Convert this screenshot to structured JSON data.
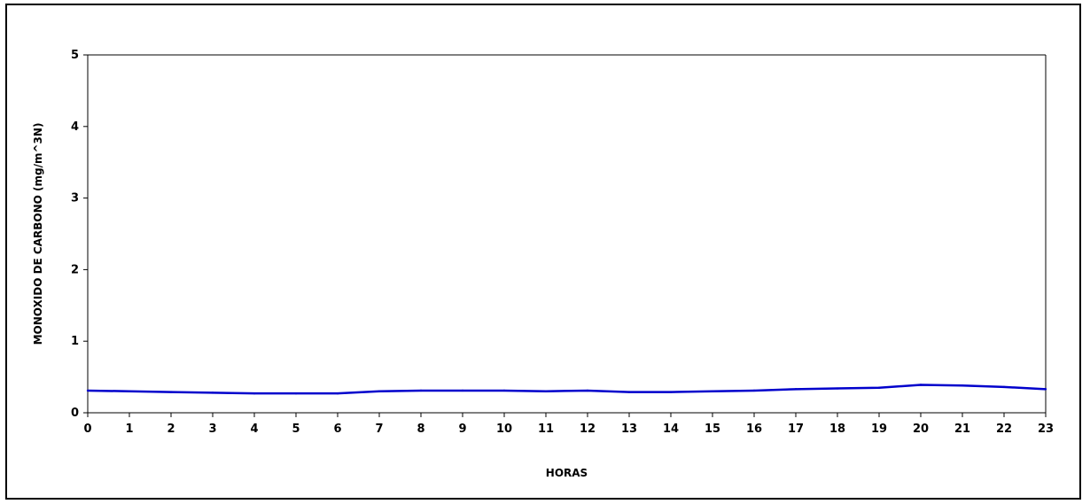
{
  "chart_data": {
    "type": "line",
    "title": "",
    "xlabel": "HORAS",
    "ylabel": "MONOXIDO  DE  CARBONO  (mg/m^3N)",
    "categories": [
      "0",
      "1",
      "2",
      "3",
      "4",
      "5",
      "6",
      "7",
      "8",
      "9",
      "10",
      "11",
      "12",
      "13",
      "14",
      "15",
      "16",
      "17",
      "18",
      "19",
      "20",
      "21",
      "22",
      "23"
    ],
    "series": [
      {
        "color": "#0000CC",
        "values": [
          0.31,
          0.3,
          0.29,
          0.28,
          0.27,
          0.27,
          0.27,
          0.3,
          0.31,
          0.31,
          0.31,
          0.3,
          0.31,
          0.29,
          0.29,
          0.3,
          0.31,
          0.33,
          0.34,
          0.35,
          0.39,
          0.38,
          0.36,
          0.33
        ]
      }
    ],
    "ylim": [
      0,
      5
    ],
    "yticks": [
      0,
      1,
      2,
      3,
      4,
      5
    ],
    "grid": false,
    "legend": "none"
  }
}
